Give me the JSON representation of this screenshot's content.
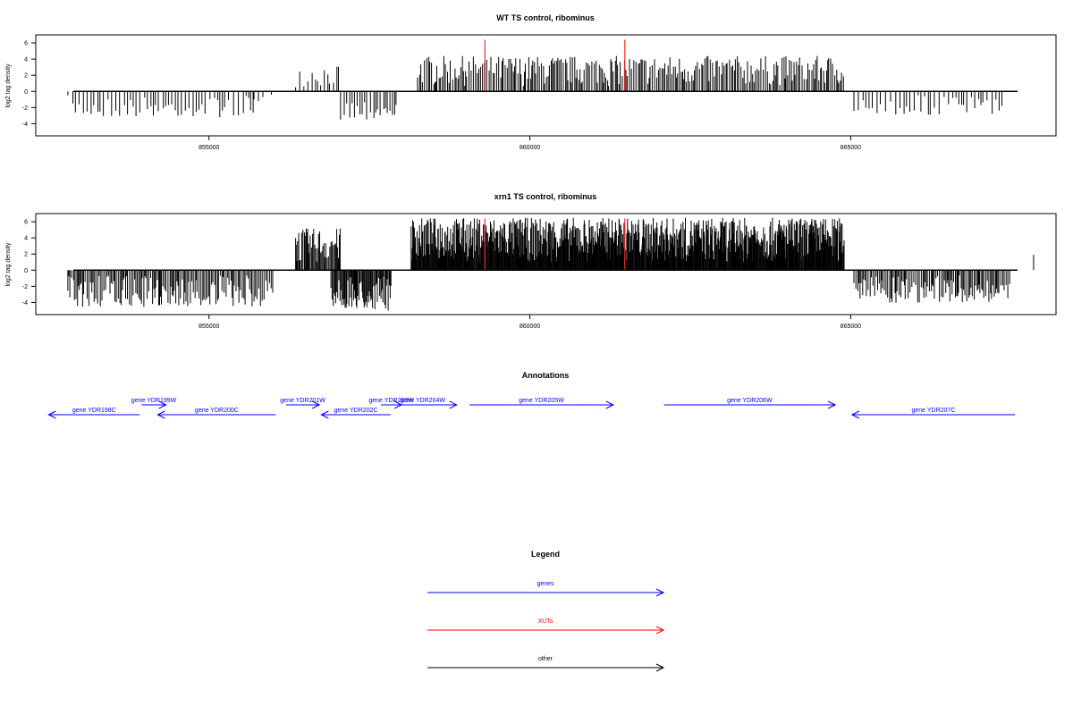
{
  "colors": {
    "gene": "#0000ff",
    "xut": "#ff0000",
    "other": "#000000",
    "highlight": "#ff2a2a"
  },
  "chart_data": [
    {
      "type": "bar",
      "title": "WT TS control, ribominus",
      "ylabel": "log2 tag density",
      "xlim": [
        852300,
        868200
      ],
      "ylim": [
        -5.5,
        7
      ],
      "xticks": [
        855000,
        860000,
        865000
      ],
      "xtick_labels": [
        "855000",
        "860000",
        "865000"
      ],
      "yticks": [
        6,
        4,
        2,
        0,
        -2,
        -4
      ],
      "ytick_labels": [
        "6",
        "4",
        "2",
        "0",
        "-2",
        "-4"
      ],
      "highlights": [
        {
          "x": 859300,
          "y": 6.4
        },
        {
          "x": 861480,
          "y": 6.4
        }
      ],
      "regions": [
        {
          "start": 852800,
          "end": 855700,
          "sign": -1,
          "step": 55,
          "max": 3.2
        },
        {
          "start": 855700,
          "end": 856000,
          "sign": -1,
          "step": 95,
          "max": 1.3
        },
        {
          "start": 856350,
          "end": 857050,
          "sign": 1,
          "step": 45,
          "max": 3.3
        },
        {
          "start": 857050,
          "end": 857950,
          "sign": -1,
          "step": 40,
          "max": 3.5
        },
        {
          "start": 858250,
          "end": 864900,
          "sign": 1,
          "step": 26,
          "max": 4.4
        },
        {
          "start": 865050,
          "end": 867400,
          "sign": -1,
          "step": 55,
          "max": 3.0
        }
      ]
    },
    {
      "type": "bar",
      "title": "xrn1 TS control, ribominus",
      "ylabel": "log2 tag density",
      "xlim": [
        852300,
        868200
      ],
      "ylim": [
        -5.5,
        7
      ],
      "xticks": [
        855000,
        860000,
        865000
      ],
      "xtick_labels": [
        "855000",
        "860000",
        "865000"
      ],
      "yticks": [
        6,
        4,
        2,
        0,
        -2,
        -4
      ],
      "ytick_labels": [
        "6",
        "4",
        "2",
        "0",
        "-2",
        "-4"
      ],
      "highlights": [
        {
          "x": 859300,
          "y": 6.4
        },
        {
          "x": 861480,
          "y": 6.4
        }
      ],
      "regions": [
        {
          "start": 852800,
          "end": 856000,
          "sign": -1,
          "step": 22,
          "max": 4.6
        },
        {
          "start": 856350,
          "end": 857050,
          "sign": 1,
          "step": 16,
          "max": 5.2
        },
        {
          "start": 856900,
          "end": 857850,
          "sign": -1,
          "step": 13,
          "max": 5.0
        },
        {
          "start": 858150,
          "end": 864900,
          "sign": 1,
          "step": 9,
          "max": 6.5
        },
        {
          "start": 865050,
          "end": 867500,
          "sign": -1,
          "step": 22,
          "max": 4.1
        },
        {
          "start": 867850,
          "end": 867900,
          "sign": 1,
          "step": 100,
          "max": 2.3
        }
      ]
    }
  ],
  "annotations": {
    "title": "Annotations",
    "genes": [
      {
        "label": "gene YDR198C",
        "start": 852500,
        "end": 853920,
        "strand": "-",
        "row": 1
      },
      {
        "label": "gene YDR199W",
        "start": 853950,
        "end": 854330,
        "strand": "+",
        "row": 0
      },
      {
        "label": "gene YDR200C",
        "start": 854200,
        "end": 856040,
        "strand": "-",
        "row": 1
      },
      {
        "label": "gene YDR201W",
        "start": 856200,
        "end": 856720,
        "strand": "+",
        "row": 0
      },
      {
        "label": "gene YDR202C",
        "start": 856750,
        "end": 857830,
        "strand": "-",
        "row": 1
      },
      {
        "label": "gene YDR203W",
        "start": 857680,
        "end": 858000,
        "strand": "+",
        "row": 0
      },
      {
        "label": "gene YDR204W",
        "start": 857800,
        "end": 858860,
        "strand": "+",
        "row": 0
      },
      {
        "label": "gene YDR205W",
        "start": 859060,
        "end": 861300,
        "strand": "+",
        "row": 0
      },
      {
        "label": "gene YDR206W",
        "start": 862090,
        "end": 864760,
        "strand": "+",
        "row": 0
      },
      {
        "label": "gene YDR207C",
        "start": 865020,
        "end": 867560,
        "strand": "-",
        "row": 1
      }
    ]
  },
  "legend": {
    "title": "Legend",
    "items": [
      {
        "label": "genes",
        "color": "#0000ff"
      },
      {
        "label": "XUTs",
        "color": "#ff0000"
      },
      {
        "label": "other",
        "color": "#000000"
      }
    ]
  }
}
